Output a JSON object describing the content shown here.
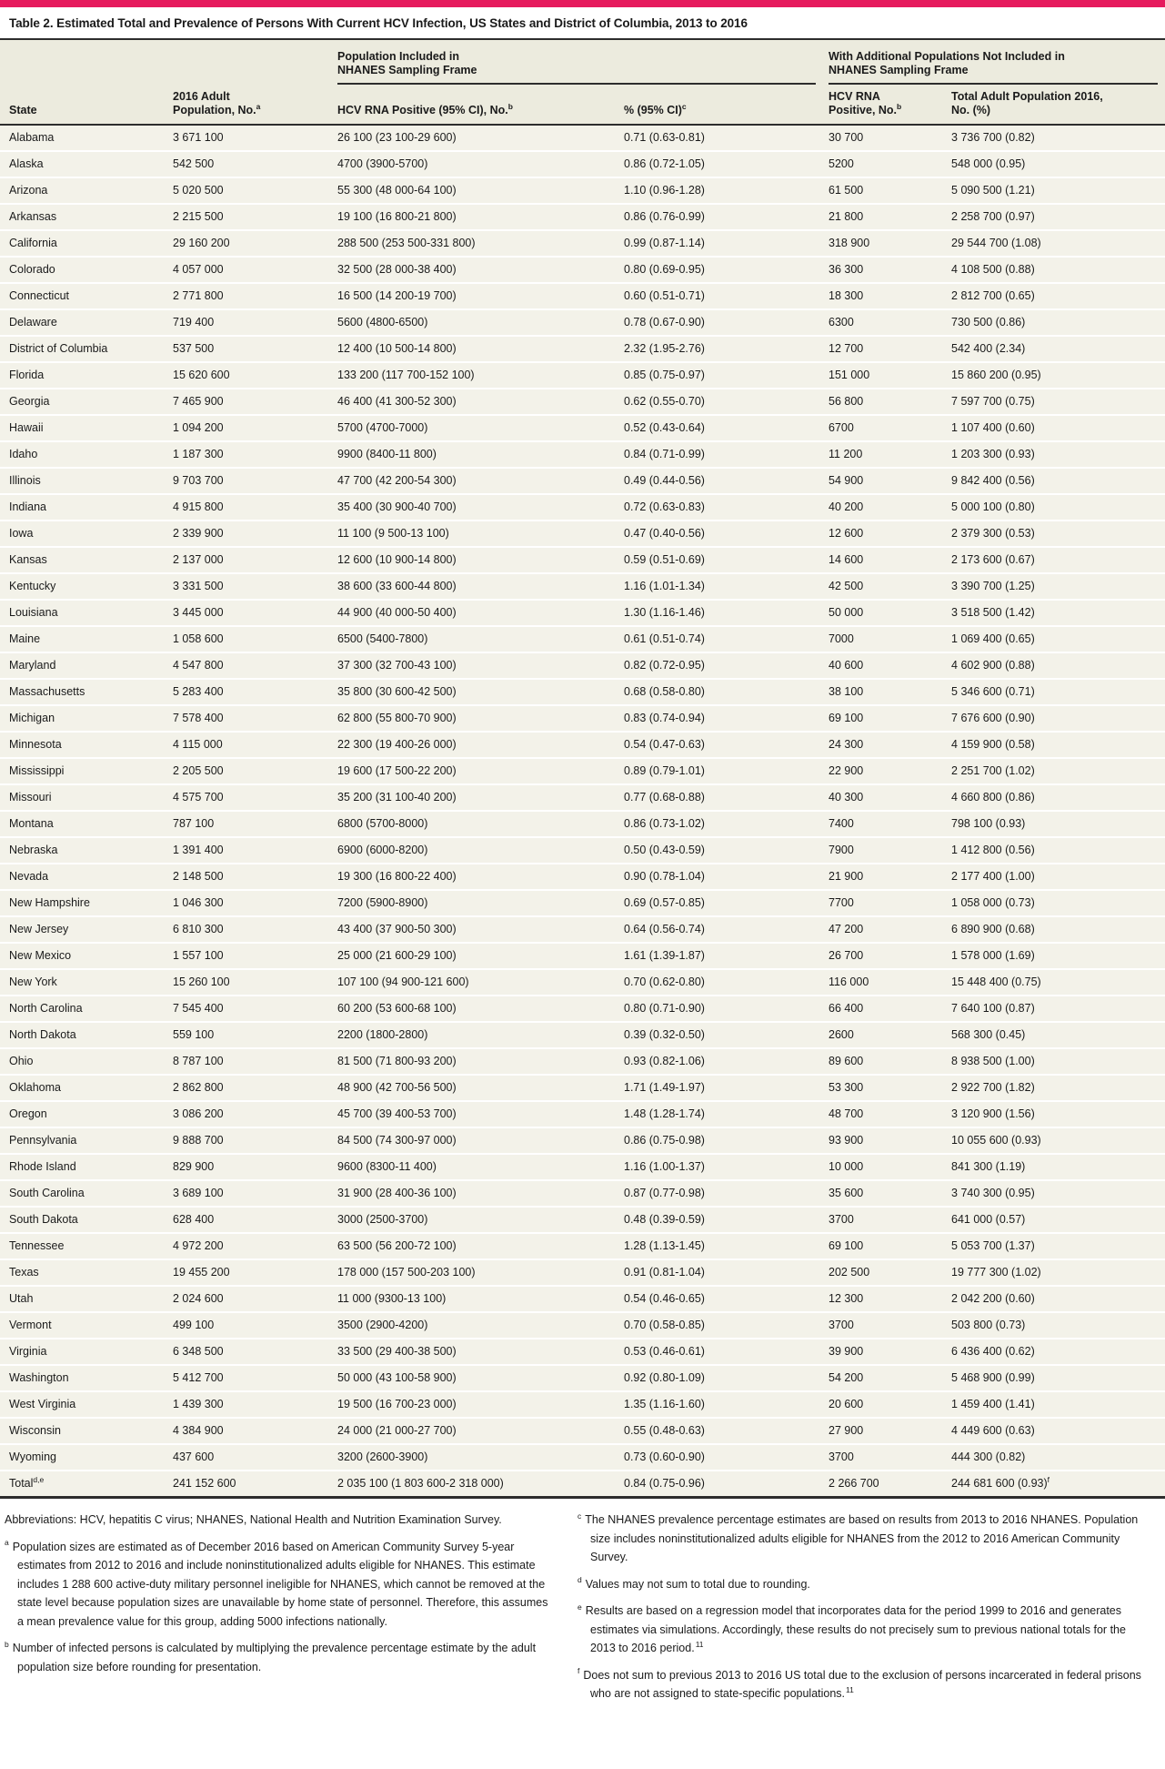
{
  "colors": {
    "accent": "#E61A5D",
    "header_bg": "#ECEBDE",
    "row_bg": "#F3F2E9",
    "rule": "#2D2D2D",
    "text": "#1A1A1A"
  },
  "title": "Table 2. Estimated Total and Prevalence of Persons With Current HCV Infection, US States and District of Columbia, 2013 to 2016",
  "table": {
    "group_headers": [
      {
        "line1": "Population Included in",
        "line2": "NHANES Sampling Frame"
      },
      {
        "line1": "With Additional Populations Not Included in",
        "line2": "NHANES Sampling Frame"
      }
    ],
    "columns": [
      {
        "line1": "State",
        "line2": "",
        "sup": ""
      },
      {
        "line1": "2016 Adult",
        "line2": "Population, No.",
        "sup": "a"
      },
      {
        "line1": "HCV RNA Positive (95% CI), No.",
        "line2": "",
        "sup": "b"
      },
      {
        "line1": "% (95% CI)",
        "line2": "",
        "sup": "c"
      },
      {
        "line1": "HCV RNA",
        "line2": "Positive, No.",
        "sup": "b"
      },
      {
        "line1": "Total Adult Population 2016,",
        "line2": "No. (%)",
        "sup": ""
      }
    ],
    "rows": [
      [
        "Alabama",
        "3 671 100",
        "26 100 (23 100-29 600)",
        "0.71 (0.63-0.81)",
        "30 700",
        "3 736 700 (0.82)"
      ],
      [
        "Alaska",
        "542 500",
        "4700 (3900-5700)",
        "0.86 (0.72-1.05)",
        "5200",
        "548 000 (0.95)"
      ],
      [
        "Arizona",
        "5 020 500",
        "55 300 (48 000-64 100)",
        "1.10 (0.96-1.28)",
        "61 500",
        "5 090 500 (1.21)"
      ],
      [
        "Arkansas",
        "2 215 500",
        "19 100 (16 800-21 800)",
        "0.86 (0.76-0.99)",
        "21 800",
        "2 258 700 (0.97)"
      ],
      [
        "California",
        "29 160 200",
        "288 500 (253 500-331 800)",
        "0.99 (0.87-1.14)",
        "318 900",
        "29 544 700 (1.08)"
      ],
      [
        "Colorado",
        "4 057 000",
        "32 500 (28 000-38 400)",
        "0.80 (0.69-0.95)",
        "36 300",
        "4 108 500 (0.88)"
      ],
      [
        "Connecticut",
        "2 771 800",
        "16 500 (14 200-19 700)",
        "0.60 (0.51-0.71)",
        "18 300",
        "2 812 700 (0.65)"
      ],
      [
        "Delaware",
        "719 400",
        "5600 (4800-6500)",
        "0.78 (0.67-0.90)",
        "6300",
        "730 500 (0.86)"
      ],
      [
        "District of Columbia",
        "537 500",
        "12 400 (10 500-14 800)",
        "2.32 (1.95-2.76)",
        "12 700",
        "542 400 (2.34)"
      ],
      [
        "Florida",
        "15 620 600",
        "133 200 (117 700-152 100)",
        "0.85 (0.75-0.97)",
        "151 000",
        "15 860 200 (0.95)"
      ],
      [
        "Georgia",
        "7 465 900",
        "46 400 (41 300-52 300)",
        "0.62 (0.55-0.70)",
        "56 800",
        "7 597 700 (0.75)"
      ],
      [
        "Hawaii",
        "1 094 200",
        "5700 (4700-7000)",
        "0.52 (0.43-0.64)",
        "6700",
        "1 107 400 (0.60)"
      ],
      [
        "Idaho",
        "1 187 300",
        "9900 (8400-11 800)",
        "0.84 (0.71-0.99)",
        "11 200",
        "1 203 300 (0.93)"
      ],
      [
        "Illinois",
        "9 703 700",
        "47 700 (42 200-54 300)",
        "0.49 (0.44-0.56)",
        "54 900",
        "9 842 400 (0.56)"
      ],
      [
        "Indiana",
        "4 915 800",
        "35 400 (30 900-40 700)",
        "0.72 (0.63-0.83)",
        "40 200",
        "5 000 100 (0.80)"
      ],
      [
        "Iowa",
        "2 339 900",
        "11 100 (9 500-13 100)",
        "0.47 (0.40-0.56)",
        "12 600",
        "2 379 300 (0.53)"
      ],
      [
        "Kansas",
        "2 137 000",
        "12 600 (10 900-14 800)",
        "0.59 (0.51-0.69)",
        "14 600",
        "2 173 600 (0.67)"
      ],
      [
        "Kentucky",
        "3 331 500",
        "38 600 (33 600-44 800)",
        "1.16 (1.01-1.34)",
        "42 500",
        "3 390 700 (1.25)"
      ],
      [
        "Louisiana",
        "3 445 000",
        "44 900 (40 000-50 400)",
        "1.30 (1.16-1.46)",
        "50 000",
        "3 518 500 (1.42)"
      ],
      [
        "Maine",
        "1 058 600",
        "6500 (5400-7800)",
        "0.61 (0.51-0.74)",
        "7000",
        "1 069 400 (0.65)"
      ],
      [
        "Maryland",
        "4 547 800",
        "37 300 (32 700-43 100)",
        "0.82 (0.72-0.95)",
        "40 600",
        "4 602 900 (0.88)"
      ],
      [
        "Massachusetts",
        "5 283 400",
        "35 800 (30 600-42 500)",
        "0.68 (0.58-0.80)",
        "38 100",
        "5 346 600 (0.71)"
      ],
      [
        "Michigan",
        "7 578 400",
        "62 800 (55 800-70 900)",
        "0.83 (0.74-0.94)",
        "69 100",
        "7 676 600 (0.90)"
      ],
      [
        "Minnesota",
        "4 115 000",
        "22 300 (19 400-26 000)",
        "0.54 (0.47-0.63)",
        "24 300",
        "4 159 900 (0.58)"
      ],
      [
        "Mississippi",
        "2 205 500",
        "19 600 (17 500-22 200)",
        "0.89 (0.79-1.01)",
        "22 900",
        "2 251 700 (1.02)"
      ],
      [
        "Missouri",
        "4 575 700",
        "35 200 (31 100-40 200)",
        "0.77 (0.68-0.88)",
        "40 300",
        "4 660 800 (0.86)"
      ],
      [
        "Montana",
        "787 100",
        "6800 (5700-8000)",
        "0.86 (0.73-1.02)",
        "7400",
        "798 100 (0.93)"
      ],
      [
        "Nebraska",
        "1 391 400",
        "6900 (6000-8200)",
        "0.50 (0.43-0.59)",
        "7900",
        "1 412 800 (0.56)"
      ],
      [
        "Nevada",
        "2 148 500",
        "19 300 (16 800-22 400)",
        "0.90 (0.78-1.04)",
        "21 900",
        "2 177 400 (1.00)"
      ],
      [
        "New Hampshire",
        "1 046 300",
        "7200 (5900-8900)",
        "0.69 (0.57-0.85)",
        "7700",
        "1 058 000 (0.73)"
      ],
      [
        "New Jersey",
        "6 810 300",
        "43 400 (37 900-50 300)",
        "0.64 (0.56-0.74)",
        "47 200",
        "6 890 900 (0.68)"
      ],
      [
        "New Mexico",
        "1 557 100",
        "25 000 (21 600-29 100)",
        "1.61 (1.39-1.87)",
        "26 700",
        "1 578 000 (1.69)"
      ],
      [
        "New York",
        "15 260 100",
        "107 100 (94 900-121 600)",
        "0.70 (0.62-0.80)",
        "116 000",
        "15 448 400 (0.75)"
      ],
      [
        "North Carolina",
        "7 545 400",
        "60 200 (53 600-68 100)",
        "0.80 (0.71-0.90)",
        "66 400",
        "7 640 100 (0.87)"
      ],
      [
        "North Dakota",
        "559 100",
        "2200 (1800-2800)",
        "0.39 (0.32-0.50)",
        "2600",
        "568 300 (0.45)"
      ],
      [
        "Ohio",
        "8 787 100",
        "81 500 (71 800-93 200)",
        "0.93 (0.82-1.06)",
        "89 600",
        "8 938 500 (1.00)"
      ],
      [
        "Oklahoma",
        "2 862 800",
        "48 900 (42 700-56 500)",
        "1.71 (1.49-1.97)",
        "53 300",
        "2 922 700 (1.82)"
      ],
      [
        "Oregon",
        "3 086 200",
        "45 700 (39 400-53 700)",
        "1.48 (1.28-1.74)",
        "48 700",
        "3 120 900 (1.56)"
      ],
      [
        "Pennsylvania",
        "9 888 700",
        "84 500 (74 300-97 000)",
        "0.86 (0.75-0.98)",
        "93 900",
        "10 055 600 (0.93)"
      ],
      [
        "Rhode Island",
        "829 900",
        "9600 (8300-11 400)",
        "1.16 (1.00-1.37)",
        "10 000",
        "841 300 (1.19)"
      ],
      [
        "South Carolina",
        "3 689 100",
        "31 900 (28 400-36 100)",
        "0.87 (0.77-0.98)",
        "35 600",
        "3 740 300 (0.95)"
      ],
      [
        "South Dakota",
        "628 400",
        "3000 (2500-3700)",
        "0.48 (0.39-0.59)",
        "3700",
        "641 000 (0.57)"
      ],
      [
        "Tennessee",
        "4 972 200",
        "63 500 (56 200-72 100)",
        "1.28 (1.13-1.45)",
        "69 100",
        "5 053 700 (1.37)"
      ],
      [
        "Texas",
        "19 455 200",
        "178 000 (157 500-203 100)",
        "0.91 (0.81-1.04)",
        "202 500",
        "19 777 300 (1.02)"
      ],
      [
        "Utah",
        "2 024 600",
        "11 000 (9300-13 100)",
        "0.54 (0.46-0.65)",
        "12 300",
        "2 042 200 (0.60)"
      ],
      [
        "Vermont",
        "499 100",
        "3500 (2900-4200)",
        "0.70 (0.58-0.85)",
        "3700",
        "503 800 (0.73)"
      ],
      [
        "Virginia",
        "6 348 500",
        "33 500 (29 400-38 500)",
        "0.53 (0.46-0.61)",
        "39 900",
        "6 436 400 (0.62)"
      ],
      [
        "Washington",
        "5 412 700",
        "50 000 (43 100-58 900)",
        "0.92 (0.80-1.09)",
        "54 200",
        "5 468 900 (0.99)"
      ],
      [
        "West Virginia",
        "1 439 300",
        "19 500 (16 700-23 000)",
        "1.35 (1.16-1.60)",
        "20 600",
        "1 459 400 (1.41)"
      ],
      [
        "Wisconsin",
        "4 384 900",
        "24 000 (21 000-27 700)",
        "0.55 (0.48-0.63)",
        "27 900",
        "4 449 600 (0.63)"
      ],
      [
        "Wyoming",
        "437 600",
        "3200 (2600-3900)",
        "0.73 (0.60-0.90)",
        "3700",
        "444 300 (0.82)"
      ]
    ],
    "total_row": {
      "label": "Total",
      "label_sup": "d,e",
      "cells": [
        "241 152 600",
        "2 035 100 (1 803 600-2 318 000)",
        "0.84 (0.75-0.96)",
        "2 266 700"
      ],
      "last_cell": "244 681 600 (0.93)",
      "last_sup": "f"
    }
  },
  "footnotes": {
    "abbreviations": "Abbreviations: HCV, hepatitis C virus; NHANES, National Health and Nutrition Examination Survey.",
    "left": [
      {
        "marker": "a",
        "text": "Population sizes are estimated as of December 2016 based on American Community Survey 5-year estimates from 2012 to 2016 and include noninstitutionalized adults eligible for NHANES. This estimate includes 1 288 600 active-duty military personnel ineligible for NHANES, which cannot be removed at the state level because population sizes are unavailable by home state of personnel. Therefore, this assumes a mean prevalence value for this group, adding 5000 infections nationally.",
        "ref": ""
      },
      {
        "marker": "b",
        "text": "Number of infected persons is calculated by multiplying the prevalence percentage estimate by the adult population size before rounding for presentation.",
        "ref": ""
      }
    ],
    "right": [
      {
        "marker": "c",
        "text": "The NHANES prevalence percentage estimates are based on results from 2013 to 2016 NHANES. Population size includes noninstitutionalized adults eligible for NHANES from the 2012 to 2016 American Community Survey.",
        "ref": ""
      },
      {
        "marker": "d",
        "text": "Values may not sum to total due to rounding.",
        "ref": ""
      },
      {
        "marker": "e",
        "text": "Results are based on a regression model that incorporates data for the period 1999 to 2016 and generates estimates via simulations. Accordingly, these results do not precisely sum to previous national totals for the 2013 to 2016 period.",
        "ref": "11"
      },
      {
        "marker": "f",
        "text": "Does not sum to previous 2013 to 2016 US total due to the exclusion of persons incarcerated in federal prisons who are not assigned to state-specific populations.",
        "ref": "11"
      }
    ]
  }
}
